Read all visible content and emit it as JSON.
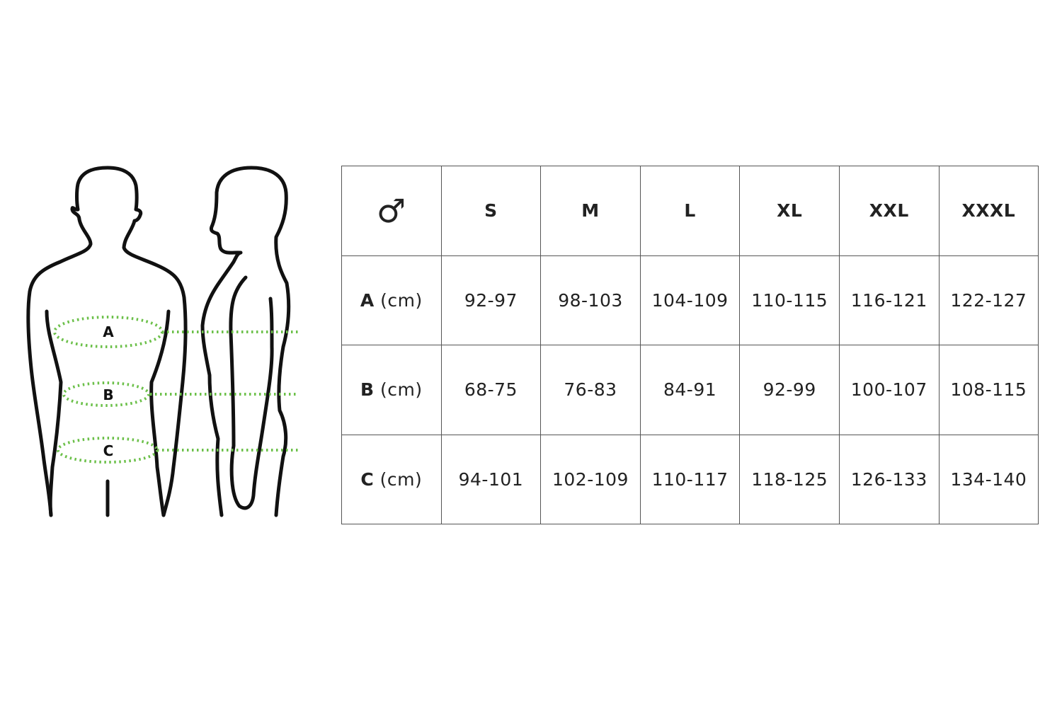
{
  "figure": {
    "labels": [
      "A",
      "B",
      "C"
    ],
    "measure_color": "#6cc04a",
    "outline_color": "#111111"
  },
  "table": {
    "corner_icon": "male-symbol-icon",
    "corner_symbol": "♂",
    "sizes": [
      "S",
      "M",
      "L",
      "XL",
      "XXL",
      "XXXL"
    ],
    "rows": [
      {
        "label": "A",
        "unit": "(cm)",
        "values": [
          "92-97",
          "98-103",
          "104-109",
          "110-115",
          "116-121",
          "122-127"
        ]
      },
      {
        "label": "B",
        "unit": "(cm)",
        "values": [
          "68-75",
          "76-83",
          "84-91",
          "92-99",
          "100-107",
          "108-115"
        ]
      },
      {
        "label": "C",
        "unit": "(cm)",
        "values": [
          "94-101",
          "102-109",
          "110-117",
          "118-125",
          "126-133",
          "134-140"
        ]
      }
    ]
  }
}
